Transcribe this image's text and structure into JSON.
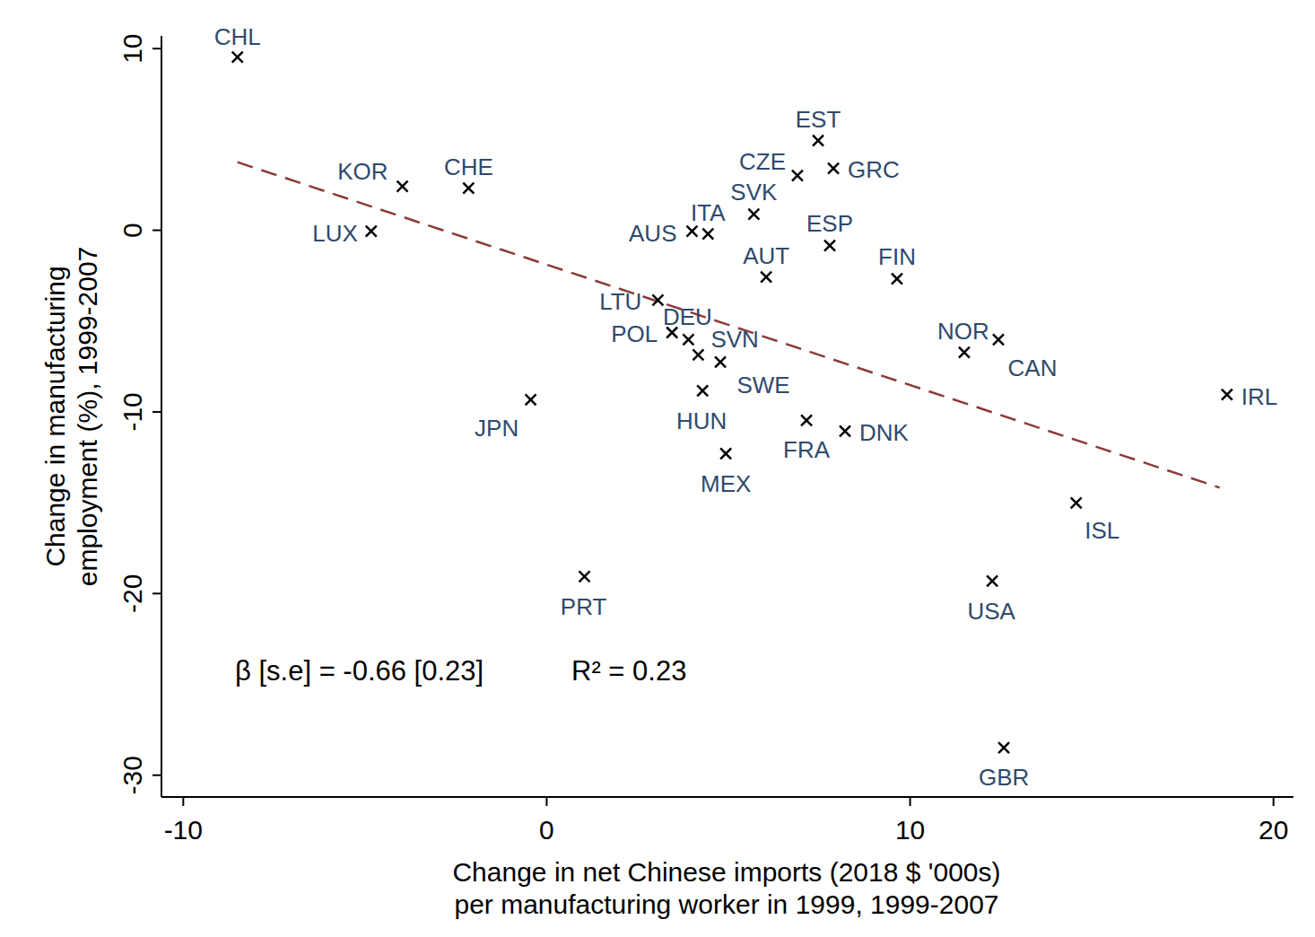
{
  "chart_data": {
    "type": "scatter",
    "x_label": [
      "Change in net Chinese imports (2018 $ '000s)",
      "per manufacturing worker in 1999, 1999-2007"
    ],
    "y_label": [
      "Change in manufacturing",
      "employment (%), 1999-2007"
    ],
    "labels": [
      "CHL",
      "KOR",
      "CHE",
      "LUX",
      "EST",
      "CZE",
      "GRC",
      "SVK",
      "ITA",
      "AUS",
      "ESP",
      "AUT",
      "FIN",
      "LTU",
      "POL",
      "DEU",
      "SVN",
      "SWE",
      "HUN",
      "JPN",
      "MEX",
      "FRA",
      "DNK",
      "NOR",
      "CAN",
      "IRL",
      "ISL",
      "PRT",
      "USA",
      "GBR"
    ],
    "x": [
      -8.51,
      -3.97,
      -2.15,
      -4.83,
      7.47,
      6.9,
      7.89,
      5.7,
      4.44,
      4.0,
      7.79,
      6.04,
      9.64,
      3.06,
      3.45,
      3.9,
      4.17,
      4.78,
      4.29,
      -0.44,
      4.93,
      7.15,
      8.21,
      11.49,
      12.43,
      18.72,
      14.57,
      1.04,
      12.26,
      12.58
    ],
    "values": [
      9.53,
      2.42,
      2.32,
      -0.05,
      4.94,
      3.01,
      3.41,
      0.89,
      -0.2,
      -0.05,
      -0.84,
      -2.57,
      -2.67,
      -3.85,
      -5.63,
      -6.02,
      -6.86,
      -7.26,
      -8.84,
      -9.33,
      -12.3,
      -10.47,
      -11.06,
      -6.72,
      -6.02,
      -9.04,
      -15.01,
      -19.06,
      -19.31,
      -28.49
    ],
    "marker": "x",
    "color": "#000000",
    "fit": {
      "x": [
        -8.51,
        18.52
      ],
      "values": [
        3.75,
        -14.17
      ],
      "line_style": "dashed",
      "color": "#8b3a3a"
    },
    "annotations": [
      "β [s.e] = -0.66 [0.23]",
      "R² = 0.23"
    ],
    "xlim": [
      -10.6,
      20.55
    ],
    "ylim": [
      -31.2,
      10.7
    ],
    "xticks": [
      -10,
      0,
      10,
      20
    ],
    "yticks": [
      -30,
      -20,
      -10,
      0,
      10
    ],
    "grid": false
  }
}
